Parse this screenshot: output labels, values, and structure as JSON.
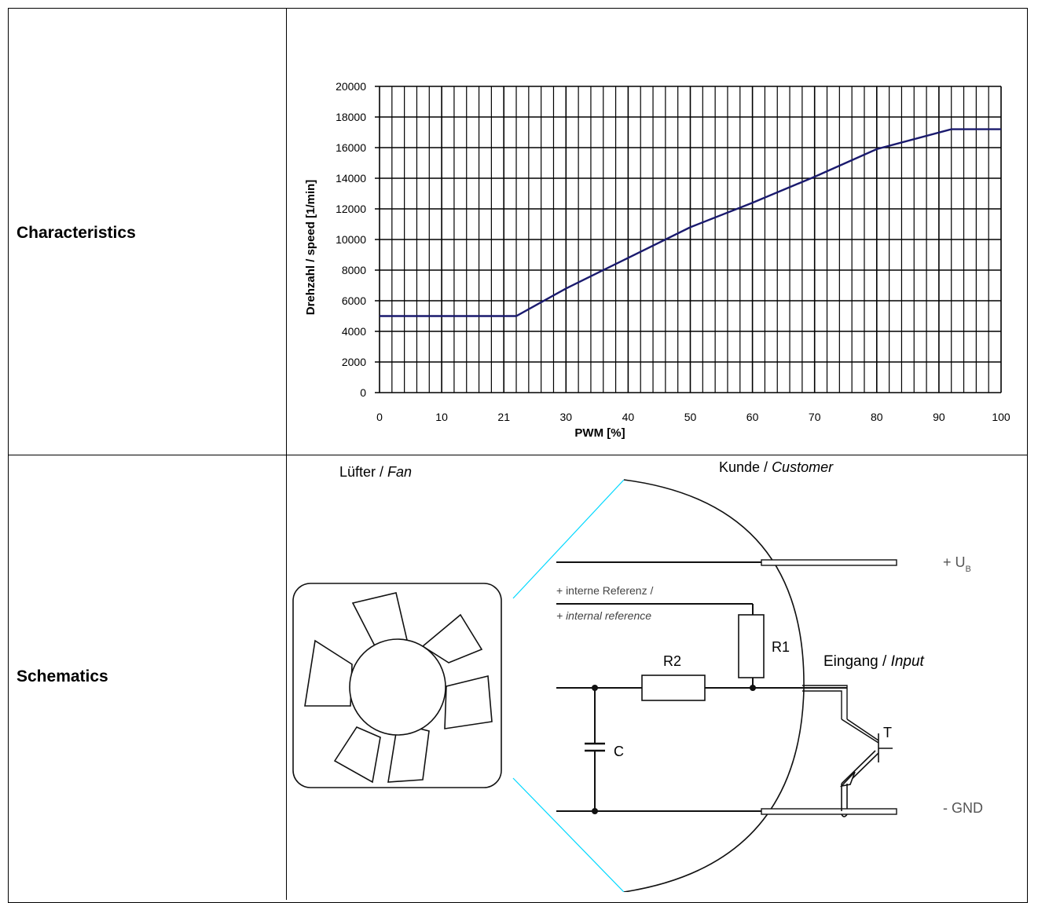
{
  "rows": {
    "characteristics_label": "Characteristics",
    "schematics_label": "Schematics"
  },
  "chart_data": {
    "type": "line",
    "xlabel": "PWM [%]",
    "ylabel": "Drehzahl / speed [1/min]",
    "xlim": [
      0,
      100
    ],
    "ylim": [
      0,
      20000
    ],
    "x_ticks": [
      "0",
      "10",
      "21",
      "30",
      "40",
      "50",
      "60",
      "70",
      "80",
      "90",
      "100"
    ],
    "y_ticks": [
      "0",
      "2000",
      "4000",
      "6000",
      "8000",
      "10000",
      "12000",
      "14000",
      "16000",
      "18000",
      "20000"
    ],
    "grid": true,
    "line_color": "#1a1a6e",
    "series": [
      {
        "x": [
          0,
          22,
          30,
          40,
          50,
          60,
          70,
          80,
          92,
          100
        ],
        "y": [
          5000,
          5000,
          6800,
          8800,
          10800,
          12400,
          14100,
          15900,
          17200,
          17200
        ]
      }
    ]
  },
  "schematic": {
    "fan_label": "Lüfter / ",
    "fan_label_italic": "Fan",
    "customer_label": "Kunde / ",
    "customer_label_italic": "Customer",
    "supply_label": "+ U",
    "supply_subscript": "B",
    "gnd_label": "- GND",
    "ref_label_line1": "+ interne Referenz /",
    "ref_label_line2": "+ internal reference",
    "r1_label": "R1",
    "r2_label": "R2",
    "c_label": "C",
    "t_label": "T",
    "input_label": "Eingang / ",
    "input_label_italic": "Input",
    "boundary_color": "#00d8ff"
  }
}
